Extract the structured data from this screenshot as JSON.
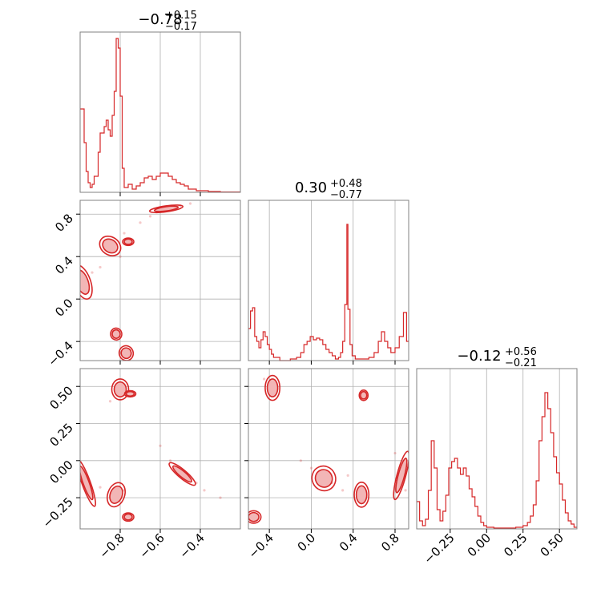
{
  "figure": {
    "params": [
      {
        "title_main": "−0.78",
        "title_sup": "+0.15",
        "title_sub": "−0.17"
      },
      {
        "title_main": "0.30",
        "title_sup": "+0.48",
        "title_sub": "−0.77"
      },
      {
        "title_main": "−0.12",
        "title_sup": "+0.56",
        "title_sub": "−0.21"
      }
    ]
  },
  "chart_data": {
    "type": "corner",
    "color": "#d62728",
    "grid": true,
    "axes": {
      "x0": {
        "lim": [
          -1.0,
          -0.2
        ],
        "ticks": [
          -0.8,
          -0.6,
          -0.4
        ],
        "ticklabels": [
          "−0.8",
          "−0.6",
          "−0.4"
        ]
      },
      "x1": {
        "lim": [
          -0.6,
          0.93
        ],
        "ticks": [
          -0.4,
          0.0,
          0.4,
          0.8
        ],
        "ticklabels": [
          "−0.4",
          "0.0",
          "0.4",
          "0.8"
        ]
      },
      "x2": {
        "lim": [
          -0.48,
          0.62
        ],
        "ticks": [
          -0.25,
          0.0,
          0.25,
          0.5
        ],
        "ticklabels": [
          "−0.25",
          "0.00",
          "0.25",
          "0.50"
        ]
      },
      "y1": {
        "lim": [
          -0.58,
          0.93
        ],
        "ticks": [
          0.8,
          0.4,
          0.0,
          -0.4
        ],
        "ticklabels": [
          "0.8",
          "0.4",
          "0.0",
          "−0.4"
        ]
      },
      "y2": {
        "lim": [
          -0.46,
          0.62
        ],
        "ticks": [
          0.5,
          0.25,
          0.0,
          -0.25
        ],
        "ticklabels": [
          "0.50",
          "0.25",
          "0.00",
          "−0.25"
        ]
      }
    },
    "hist0": [
      {
        "x": -1.0,
        "h": 0.52
      },
      {
        "x": -0.98,
        "h": 0.31
      },
      {
        "x": -0.97,
        "h": 0.13
      },
      {
        "x": -0.96,
        "h": 0.06
      },
      {
        "x": -0.95,
        "h": 0.03
      },
      {
        "x": -0.94,
        "h": 0.05
      },
      {
        "x": -0.93,
        "h": 0.1
      },
      {
        "x": -0.91,
        "h": 0.25
      },
      {
        "x": -0.9,
        "h": 0.37
      },
      {
        "x": -0.88,
        "h": 0.41
      },
      {
        "x": -0.87,
        "h": 0.45
      },
      {
        "x": -0.86,
        "h": 0.39
      },
      {
        "x": -0.85,
        "h": 0.35
      },
      {
        "x": -0.84,
        "h": 0.48
      },
      {
        "x": -0.83,
        "h": 0.63
      },
      {
        "x": -0.82,
        "h": 0.96
      },
      {
        "x": -0.81,
        "h": 0.9
      },
      {
        "x": -0.8,
        "h": 0.6
      },
      {
        "x": -0.79,
        "h": 0.15
      },
      {
        "x": -0.78,
        "h": 0.03
      },
      {
        "x": -0.76,
        "h": 0.05
      },
      {
        "x": -0.74,
        "h": 0.02
      },
      {
        "x": -0.72,
        "h": 0.04
      },
      {
        "x": -0.7,
        "h": 0.06
      },
      {
        "x": -0.68,
        "h": 0.09
      },
      {
        "x": -0.66,
        "h": 0.1
      },
      {
        "x": -0.64,
        "h": 0.08
      },
      {
        "x": -0.62,
        "h": 0.1
      },
      {
        "x": -0.6,
        "h": 0.12
      },
      {
        "x": -0.58,
        "h": 0.12
      },
      {
        "x": -0.56,
        "h": 0.1
      },
      {
        "x": -0.54,
        "h": 0.08
      },
      {
        "x": -0.52,
        "h": 0.06
      },
      {
        "x": -0.5,
        "h": 0.05
      },
      {
        "x": -0.48,
        "h": 0.04
      },
      {
        "x": -0.46,
        "h": 0.02
      },
      {
        "x": -0.42,
        "h": 0.01
      },
      {
        "x": -0.36,
        "h": 0.005
      },
      {
        "x": -0.3,
        "h": 0.002
      }
    ],
    "hist1": [
      {
        "x": -0.6,
        "h": 0.2
      },
      {
        "x": -0.58,
        "h": 0.31
      },
      {
        "x": -0.56,
        "h": 0.33
      },
      {
        "x": -0.54,
        "h": 0.15
      },
      {
        "x": -0.52,
        "h": 0.12
      },
      {
        "x": -0.5,
        "h": 0.08
      },
      {
        "x": -0.48,
        "h": 0.13
      },
      {
        "x": -0.46,
        "h": 0.18
      },
      {
        "x": -0.44,
        "h": 0.15
      },
      {
        "x": -0.42,
        "h": 0.1
      },
      {
        "x": -0.4,
        "h": 0.07
      },
      {
        "x": -0.38,
        "h": 0.04
      },
      {
        "x": -0.36,
        "h": 0.02
      },
      {
        "x": -0.3,
        "h": 0.0
      },
      {
        "x": -0.2,
        "h": 0.01
      },
      {
        "x": -0.14,
        "h": 0.02
      },
      {
        "x": -0.1,
        "h": 0.05
      },
      {
        "x": -0.07,
        "h": 0.1
      },
      {
        "x": -0.04,
        "h": 0.12
      },
      {
        "x": -0.01,
        "h": 0.15
      },
      {
        "x": 0.02,
        "h": 0.13
      },
      {
        "x": 0.05,
        "h": 0.14
      },
      {
        "x": 0.08,
        "h": 0.13
      },
      {
        "x": 0.11,
        "h": 0.1
      },
      {
        "x": 0.14,
        "h": 0.07
      },
      {
        "x": 0.17,
        "h": 0.05
      },
      {
        "x": 0.2,
        "h": 0.03
      },
      {
        "x": 0.23,
        "h": 0.01
      },
      {
        "x": 0.26,
        "h": 0.02
      },
      {
        "x": 0.28,
        "h": 0.05
      },
      {
        "x": 0.3,
        "h": 0.12
      },
      {
        "x": 0.32,
        "h": 0.35
      },
      {
        "x": 0.34,
        "h": 0.85
      },
      {
        "x": 0.35,
        "h": 0.32
      },
      {
        "x": 0.37,
        "h": 0.1
      },
      {
        "x": 0.39,
        "h": 0.03
      },
      {
        "x": 0.42,
        "h": 0.01
      },
      {
        "x": 0.48,
        "h": 0.01
      },
      {
        "x": 0.55,
        "h": 0.02
      },
      {
        "x": 0.6,
        "h": 0.05
      },
      {
        "x": 0.64,
        "h": 0.12
      },
      {
        "x": 0.67,
        "h": 0.18
      },
      {
        "x": 0.7,
        "h": 0.12
      },
      {
        "x": 0.73,
        "h": 0.08
      },
      {
        "x": 0.76,
        "h": 0.05
      },
      {
        "x": 0.8,
        "h": 0.08
      },
      {
        "x": 0.84,
        "h": 0.15
      },
      {
        "x": 0.88,
        "h": 0.3
      },
      {
        "x": 0.91,
        "h": 0.12
      }
    ],
    "hist2": [
      {
        "x": -0.48,
        "h": 0.17
      },
      {
        "x": -0.46,
        "h": 0.05
      },
      {
        "x": -0.44,
        "h": 0.02
      },
      {
        "x": -0.42,
        "h": 0.06
      },
      {
        "x": -0.4,
        "h": 0.24
      },
      {
        "x": -0.38,
        "h": 0.55
      },
      {
        "x": -0.36,
        "h": 0.38
      },
      {
        "x": -0.34,
        "h": 0.12
      },
      {
        "x": -0.32,
        "h": 0.05
      },
      {
        "x": -0.3,
        "h": 0.11
      },
      {
        "x": -0.28,
        "h": 0.21
      },
      {
        "x": -0.26,
        "h": 0.38
      },
      {
        "x": -0.24,
        "h": 0.42
      },
      {
        "x": -0.22,
        "h": 0.44
      },
      {
        "x": -0.2,
        "h": 0.38
      },
      {
        "x": -0.18,
        "h": 0.34
      },
      {
        "x": -0.16,
        "h": 0.38
      },
      {
        "x": -0.14,
        "h": 0.33
      },
      {
        "x": -0.12,
        "h": 0.25
      },
      {
        "x": -0.1,
        "h": 0.2
      },
      {
        "x": -0.08,
        "h": 0.14
      },
      {
        "x": -0.06,
        "h": 0.08
      },
      {
        "x": -0.04,
        "h": 0.04
      },
      {
        "x": -0.02,
        "h": 0.02
      },
      {
        "x": 0.0,
        "h": 0.01
      },
      {
        "x": 0.05,
        "h": 0.005
      },
      {
        "x": 0.1,
        "h": 0.005
      },
      {
        "x": 0.2,
        "h": 0.01
      },
      {
        "x": 0.25,
        "h": 0.02
      },
      {
        "x": 0.28,
        "h": 0.04
      },
      {
        "x": 0.3,
        "h": 0.08
      },
      {
        "x": 0.32,
        "h": 0.15
      },
      {
        "x": 0.34,
        "h": 0.3
      },
      {
        "x": 0.36,
        "h": 0.55
      },
      {
        "x": 0.38,
        "h": 0.7
      },
      {
        "x": 0.4,
        "h": 0.85
      },
      {
        "x": 0.42,
        "h": 0.75
      },
      {
        "x": 0.44,
        "h": 0.6
      },
      {
        "x": 0.46,
        "h": 0.45
      },
      {
        "x": 0.48,
        "h": 0.35
      },
      {
        "x": 0.5,
        "h": 0.28
      },
      {
        "x": 0.52,
        "h": 0.18
      },
      {
        "x": 0.54,
        "h": 0.1
      },
      {
        "x": 0.56,
        "h": 0.05
      },
      {
        "x": 0.58,
        "h": 0.03
      },
      {
        "x": 0.6,
        "h": 0.01
      }
    ],
    "blobs_10": [
      {
        "x": -0.99,
        "y": 0.16,
        "rx": 0.03,
        "ry": 0.12,
        "rot": -20
      },
      {
        "x": -0.85,
        "y": 0.5,
        "rx": 0.04,
        "ry": 0.06,
        "rot": 35
      },
      {
        "x": -0.76,
        "y": 0.54,
        "rx": 0.02,
        "ry": 0.025,
        "rot": 0
      },
      {
        "x": -0.82,
        "y": -0.33,
        "rx": 0.02,
        "ry": 0.04,
        "rot": -10
      },
      {
        "x": -0.77,
        "y": -0.51,
        "rx": 0.025,
        "ry": 0.05,
        "rot": -20
      },
      {
        "x": -0.57,
        "y": 0.85,
        "rx": 0.06,
        "ry": 0.02,
        "rot": -8
      }
    ],
    "blobs_20": [
      {
        "x": -0.8,
        "y": 0.48,
        "rx": 0.03,
        "ry": 0.05,
        "rot": 0
      },
      {
        "x": -0.75,
        "y": 0.45,
        "rx": 0.02,
        "ry": 0.015,
        "rot": 0
      },
      {
        "x": -0.82,
        "y": -0.23,
        "rx": 0.03,
        "ry": 0.06,
        "rot": 20
      },
      {
        "x": -0.76,
        "y": -0.38,
        "rx": 0.02,
        "ry": 0.02,
        "rot": 0
      },
      {
        "x": -0.97,
        "y": -0.15,
        "rx": 0.015,
        "ry": 0.12,
        "rot": -20
      },
      {
        "x": -0.49,
        "y": -0.09,
        "rx": 0.06,
        "ry": 0.02,
        "rot": 40
      }
    ],
    "blobs_21": [
      {
        "x": -0.37,
        "y": 0.49,
        "rx": 0.05,
        "ry": 0.06,
        "rot": 0
      },
      {
        "x": 0.5,
        "y": 0.44,
        "rx": 0.03,
        "ry": 0.025,
        "rot": 0
      },
      {
        "x": 0.12,
        "y": -0.12,
        "rx": 0.08,
        "ry": 0.06,
        "rot": -25
      },
      {
        "x": 0.48,
        "y": -0.23,
        "rx": 0.05,
        "ry": 0.06,
        "rot": 0
      },
      {
        "x": -0.55,
        "y": -0.38,
        "rx": 0.05,
        "ry": 0.03,
        "rot": 0
      },
      {
        "x": 0.86,
        "y": -0.1,
        "rx": 0.03,
        "ry": 0.12,
        "rot": 15
      }
    ],
    "scatter_10": [
      {
        "x": -0.78,
        "y": 0.62
      },
      {
        "x": -0.7,
        "y": 0.72
      },
      {
        "x": -0.65,
        "y": 0.78
      },
      {
        "x": -0.8,
        "y": 0.4
      },
      {
        "x": -0.9,
        "y": 0.3
      },
      {
        "x": -0.6,
        "y": 0.83
      },
      {
        "x": -0.5,
        "y": 0.88
      },
      {
        "x": -0.45,
        "y": 0.9
      },
      {
        "x": -0.94,
        "y": 0.25
      },
      {
        "x": -0.84,
        "y": -0.3
      },
      {
        "x": -0.75,
        "y": -0.48
      }
    ],
    "scatter_20": [
      {
        "x": -0.6,
        "y": 0.1
      },
      {
        "x": -0.55,
        "y": 0.0
      },
      {
        "x": -0.42,
        "y": -0.15
      },
      {
        "x": -0.38,
        "y": -0.2
      },
      {
        "x": -0.3,
        "y": -0.25
      },
      {
        "x": -0.85,
        "y": 0.4
      },
      {
        "x": -0.9,
        "y": -0.18
      },
      {
        "x": -0.78,
        "y": -0.2
      }
    ],
    "scatter_21": [
      {
        "x": -0.1,
        "y": 0.0
      },
      {
        "x": 0.0,
        "y": -0.05
      },
      {
        "x": 0.3,
        "y": -0.2
      },
      {
        "x": 0.2,
        "y": -0.15
      },
      {
        "x": 0.35,
        "y": -0.1
      },
      {
        "x": 0.8,
        "y": 0.05
      },
      {
        "x": 0.9,
        "y": -0.2
      },
      {
        "x": -0.45,
        "y": 0.55
      }
    ]
  }
}
